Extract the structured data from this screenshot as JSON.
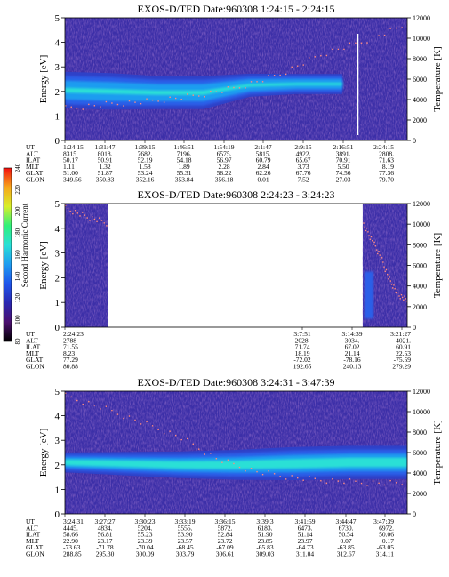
{
  "colors": {
    "background": "#3c2fa8",
    "band_core": "#29e0d6",
    "band_mid": "#1f9cf0",
    "band_outer": "#2a5ee8",
    "band_edge": "#2f41c8",
    "noise": "#4b2fa0",
    "temp_dots": "#ff8a80",
    "tline": "#ffffff"
  },
  "colorbar": {
    "label": "Second Harmonic Current",
    "ticks": [
      "80",
      "100",
      "120",
      "140",
      "160",
      "180",
      "200",
      "220",
      "240"
    ],
    "gradient": [
      "#000000",
      "#4b0f6e",
      "#2a28b0",
      "#1f55ea",
      "#1f9cf0",
      "#29e0d6",
      "#2ef07a",
      "#d8ef2a",
      "#f7a71c",
      "#f20f0f"
    ]
  },
  "chart_data": [
    {
      "type": "heatmap",
      "title": "EXOS-D/TED   Date:960308   1:24:15 - 2:24:15",
      "ylabel": "Energy [eV]",
      "y2label": "Temperature [K]",
      "ylim": [
        0,
        5
      ],
      "y_ticks": [
        "0",
        "1",
        "2",
        "3",
        "4",
        "5"
      ],
      "y2lim": [
        0,
        12000
      ],
      "y2_ticks": [
        "0",
        "2000",
        "4000",
        "6000",
        "8000",
        "10000",
        "12000"
      ],
      "band": {
        "center_ev": [
          2.05,
          2.0,
          1.95,
          1.95,
          2.25,
          2.3,
          2.3
        ],
        "half_width_ev": [
          0.55,
          0.55,
          0.5,
          0.5,
          0.35,
          0.3,
          0.3
        ],
        "band_end_fraction": 0.81
      },
      "temperature_k": [
        3200,
        3600,
        3900,
        4400,
        5200,
        6500,
        8500,
        9800,
        11400
      ],
      "white_line_fraction": 0.855,
      "ephemeris": {
        "labels": [
          "UT",
          "ALT",
          "ILAT",
          "MLT",
          "GLAT",
          "GLON"
        ],
        "columns": [
          [
            "1:24:15",
            "8315",
            "50.17",
            "1.11",
            "51.00",
            "349.56"
          ],
          [
            "1:31:47",
            "8018.",
            "50.91",
            "1.32",
            "51.87",
            "350.83"
          ],
          [
            "1:39:15",
            "7682.",
            "52.19",
            "1.58",
            "53.24",
            "352.16"
          ],
          [
            "1:46:51",
            "7196.",
            "54.18",
            "1.89",
            "55.31",
            "353.84"
          ],
          [
            "1:54:19",
            "6575.",
            "56.97",
            "2.28",
            "58.22",
            "356.18"
          ],
          [
            "2:1:47",
            "5815.",
            "60.79",
            "2.84",
            "62.26",
            "0.01"
          ],
          [
            "2:9:15",
            "4922.",
            "65.67",
            "3.73",
            "67.76",
            "7.52"
          ],
          [
            "2:16:51",
            "3891.",
            "70.91",
            "5.50",
            "74.56",
            "27.03"
          ],
          [
            "2:24:15",
            "2808.",
            "71.63",
            "8.19",
            "77.36",
            "79.70"
          ]
        ]
      }
    },
    {
      "type": "heatmap",
      "title": "EXOS-D/TED   Date:960308   2:24:23 - 3:24:23",
      "ylabel": "Energy [eV]",
      "y2label": "Temperature [K]",
      "ylim": [
        0,
        5
      ],
      "y_ticks": [
        "0",
        "1",
        "2",
        "3",
        "4",
        "5"
      ],
      "y2lim": [
        0,
        12000
      ],
      "y2_ticks": [
        "0",
        "2000",
        "4000",
        "6000",
        "8000",
        "10000",
        "12000"
      ],
      "data_segments": [
        [
          0.0,
          0.125
        ],
        [
          0.87,
          1.0
        ]
      ],
      "temperature_k": [
        11600,
        10800,
        10200,
        8600,
        6900,
        4600,
        3200,
        2600
      ],
      "ephemeris": {
        "labels": [
          "UT",
          "ALT",
          "ILAT",
          "MLT",
          "GLAT",
          "GLON"
        ],
        "columns": [
          [
            "2:24:23",
            "2788",
            "71.55",
            "8.23",
            "77.29",
            "80.88"
          ],
          [
            "3:7:51",
            "2028.",
            "71.74",
            "18.19",
            "-72.02",
            "192.65"
          ],
          [
            "3:14:39",
            "3034.",
            "67.02",
            "21.14",
            "-78.16",
            "240.13"
          ],
          [
            "3:21:27",
            "4021.",
            "60.91",
            "22.53",
            "-75.59",
            "279.29"
          ]
        ]
      }
    },
    {
      "type": "heatmap",
      "title": "EXOS-D/TED   Date:960308   3:24:31 - 3:47:39",
      "ylabel": "Energy [eV]",
      "y2label": "Temperature [K]",
      "ylim": [
        0,
        5
      ],
      "y_ticks": [
        "0",
        "1",
        "2",
        "3",
        "4",
        "5"
      ],
      "y2lim": [
        0,
        12000
      ],
      "y2_ticks": [
        "0",
        "2000",
        "4000",
        "6000",
        "8000",
        "10000",
        "12000"
      ],
      "band": {
        "center_ev": [
          2.1,
          2.05,
          2.0,
          2.0,
          2.05,
          2.1,
          2.1
        ],
        "half_width_ev": [
          0.3,
          0.35,
          0.4,
          0.45,
          0.5,
          0.5,
          0.5
        ]
      },
      "temperature_k": [
        11600,
        10400,
        9000,
        7600,
        5400,
        4200,
        3600,
        3300,
        3100,
        3000
      ],
      "ephemeris": {
        "labels": [
          "UT",
          "ALT",
          "ILAT",
          "MLT",
          "GLAT",
          "GLON"
        ],
        "columns": [
          [
            "3:24:31",
            "4445.",
            "58.66",
            "22.90",
            "-73.63",
            "288.85"
          ],
          [
            "3:27:27",
            "4834.",
            "56.81",
            "23.17",
            "-71.78",
            "295.30"
          ],
          [
            "3:30:23",
            "5204.",
            "55.23",
            "23.39",
            "-70.04",
            "300.09"
          ],
          [
            "3:33:19",
            "5555.",
            "53.90",
            "23.57",
            "-68.45",
            "303.79"
          ],
          [
            "3:36:15",
            "5872.",
            "52.84",
            "23.72",
            "-67.09",
            "306.61"
          ],
          [
            "3:39:3",
            "6183.",
            "51.90",
            "23.85",
            "-65.83",
            "309.03"
          ],
          [
            "3:41:59",
            "6473.",
            "51.14",
            "23.97",
            "-64.73",
            "311.04"
          ],
          [
            "3:44:47",
            "6730.",
            "50.54",
            "0.07",
            "-63.85",
            "312.67"
          ],
          [
            "3:47:39",
            "6972.",
            "50.06",
            "0.17",
            "-63.05",
            "314.11"
          ]
        ]
      }
    }
  ]
}
